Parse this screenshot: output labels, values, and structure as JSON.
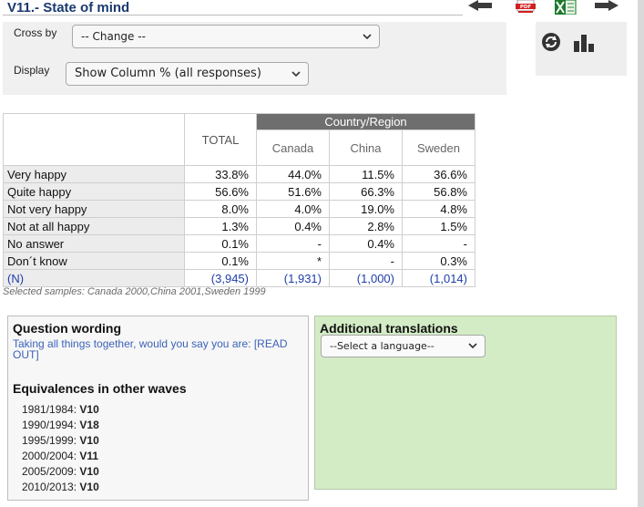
{
  "title": "V11.- State of mind",
  "icons": {
    "prev": "arrow-left-icon",
    "pdf": "pdf-icon",
    "excel": "excel-icon",
    "next": "arrow-right-icon",
    "refresh": "refresh-icon",
    "chart": "bar-chart-icon"
  },
  "controls": {
    "cross_by_label": "Cross by",
    "cross_by_value": "-- Change --",
    "display_label": "Display",
    "display_value": "Show Column % (all responses)"
  },
  "table": {
    "total_header": "TOTAL",
    "group_header": "Country/Region",
    "countries": [
      "Canada",
      "China",
      "Sweden"
    ],
    "rows": [
      {
        "label": "Very happy",
        "values": [
          "33.8%",
          "44.0%",
          "11.5%",
          "36.6%"
        ]
      },
      {
        "label": "Quite happy",
        "values": [
          "56.6%",
          "51.6%",
          "66.3%",
          "56.8%"
        ]
      },
      {
        "label": "Not very happy",
        "values": [
          "8.0%",
          "4.0%",
          "19.0%",
          "4.8%"
        ]
      },
      {
        "label": "Not at all happy",
        "values": [
          "1.3%",
          "0.4%",
          "2.8%",
          "1.5%"
        ]
      },
      {
        "label": "No answer",
        "values": [
          "0.1%",
          "-",
          "0.4%",
          "-"
        ]
      },
      {
        "label": "Don´t know",
        "values": [
          "0.1%",
          "*",
          "-",
          "0.3%"
        ]
      }
    ],
    "n_row": {
      "label": "(N)",
      "values": [
        "(3,945)",
        "(1,931)",
        "(1,000)",
        "(1,014)"
      ]
    }
  },
  "samples_note": "Selected samples: Canada 2000,China 2001,Sweden 1999",
  "question": {
    "heading": "Question wording",
    "text": "Taking all things together, would you say you are: [READ OUT]"
  },
  "equivalences": {
    "heading": "Equivalences in other waves",
    "items": [
      {
        "wave": "1981/1984:",
        "code": "V10"
      },
      {
        "wave": "1990/1994:",
        "code": "V18"
      },
      {
        "wave": "1995/1999:",
        "code": "V10"
      },
      {
        "wave": "2000/2004:",
        "code": "V11"
      },
      {
        "wave": "2005/2009:",
        "code": "V10"
      },
      {
        "wave": "2010/2013:",
        "code": "V10"
      }
    ]
  },
  "translations": {
    "heading": "Additional translations",
    "select_value": "--Select a language--"
  },
  "colors": {
    "title": "#1a3a6e",
    "header_bg": "#6e6e6e",
    "n_text": "#1f3ea8",
    "translations_bg": "#d3ecc6"
  }
}
